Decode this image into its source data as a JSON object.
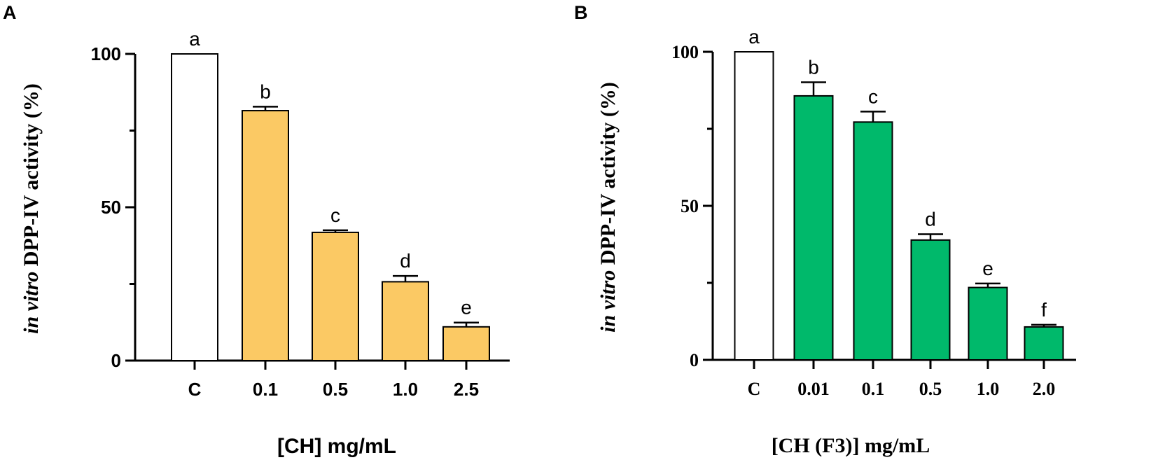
{
  "chart_data": [
    {
      "type": "bar",
      "panel": "A",
      "categories": [
        "C",
        "0.1",
        "0.5",
        "1.0",
        "2.5"
      ],
      "values": [
        100,
        81.5,
        41.8,
        25.7,
        11.0
      ],
      "errors": [
        0,
        1.3,
        0.7,
        1.9,
        1.4
      ],
      "significance": [
        "a",
        "b",
        "c",
        "d",
        "e"
      ],
      "bar_colors": [
        "#ffffff",
        "#fbc964",
        "#fbc964",
        "#fbc964",
        "#fbc964"
      ],
      "ylabel_italic": "in vitro",
      "ylabel_rest": " DPP-IV activity (%)",
      "xlabel": "[CH] mg/mL",
      "ylim": [
        0,
        100
      ],
      "major_ticks": [
        0,
        50,
        100
      ],
      "minor_ticks": [
        25,
        75
      ]
    },
    {
      "type": "bar",
      "panel": "B",
      "categories": [
        "C",
        "0.01",
        "0.1",
        "0.5",
        "1.0",
        "2.0"
      ],
      "values": [
        100,
        85.7,
        77.2,
        38.9,
        23.5,
        10.7
      ],
      "errors": [
        0,
        4.4,
        3.4,
        1.9,
        1.3,
        0.7
      ],
      "significance": [
        "a",
        "b",
        "c",
        "d",
        "e",
        "f"
      ],
      "bar_colors": [
        "#ffffff",
        "#00b96b",
        "#00b96b",
        "#00b96b",
        "#00b96b",
        "#00b96b"
      ],
      "ylabel_italic": "in vitro",
      "ylabel_rest": " DPP-IV activity (%)",
      "xlabel": "[CH (F3)] mg/mL",
      "ylim": [
        0,
        100
      ],
      "major_ticks": [
        0,
        50,
        100
      ],
      "minor_ticks": [
        25,
        75
      ]
    }
  ]
}
